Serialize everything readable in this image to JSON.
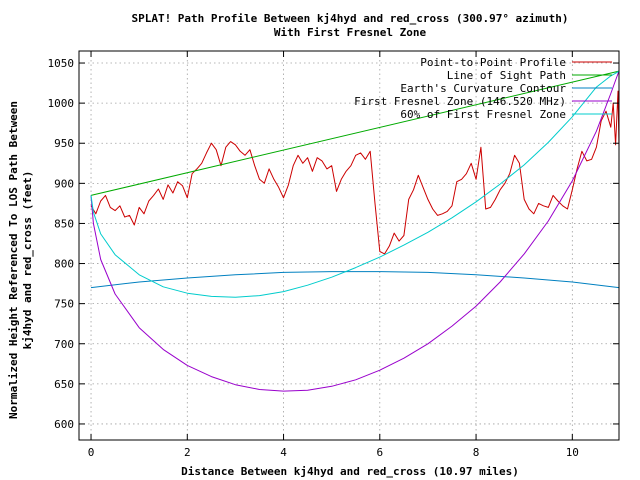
{
  "chart_data": {
    "type": "line",
    "title": "SPLAT! Path Profile Between kj4hyd and red_cross (300.97° azimuth)",
    "subtitle": "With First Fresnel Zone",
    "xlabel": "Distance Between kj4hyd and red_cross (10.97 miles)",
    "ylabel_line1": "Normalized Height Referenced To LOS Path Between",
    "ylabel_line2": "kj4hyd and red_cross (feet)",
    "xlim": [
      -0.25,
      10.97
    ],
    "ylim": [
      580,
      1065
    ],
    "xticks": [
      0,
      2,
      4,
      6,
      8,
      10
    ],
    "yticks": [
      600,
      650,
      700,
      750,
      800,
      850,
      900,
      950,
      1000,
      1050
    ],
    "grid": true,
    "legend_position": "top-right",
    "series": [
      {
        "name": "Point-to-Point Profile",
        "color": "#cc0000",
        "x": [
          0,
          0.1,
          0.2,
          0.3,
          0.4,
          0.5,
          0.6,
          0.7,
          0.8,
          0.9,
          1.0,
          1.1,
          1.2,
          1.3,
          1.4,
          1.5,
          1.6,
          1.7,
          1.8,
          1.9,
          2.0,
          2.1,
          2.2,
          2.3,
          2.4,
          2.5,
          2.6,
          2.7,
          2.8,
          2.9,
          3.0,
          3.1,
          3.2,
          3.3,
          3.4,
          3.5,
          3.6,
          3.7,
          3.8,
          3.9,
          4.0,
          4.1,
          4.2,
          4.3,
          4.4,
          4.5,
          4.6,
          4.7,
          4.8,
          4.9,
          5.0,
          5.1,
          5.2,
          5.3,
          5.4,
          5.5,
          5.6,
          5.7,
          5.8,
          5.9,
          6.0,
          6.1,
          6.2,
          6.3,
          6.4,
          6.5,
          6.6,
          6.7,
          6.8,
          6.9,
          7.0,
          7.1,
          7.2,
          7.3,
          7.4,
          7.5,
          7.6,
          7.7,
          7.8,
          7.9,
          8.0,
          8.1,
          8.2,
          8.3,
          8.4,
          8.5,
          8.6,
          8.7,
          8.8,
          8.9,
          9.0,
          9.1,
          9.2,
          9.3,
          9.4,
          9.5,
          9.6,
          9.7,
          9.8,
          9.9,
          10.0,
          10.1,
          10.2,
          10.3,
          10.4,
          10.5,
          10.6,
          10.7,
          10.8,
          10.85,
          10.9,
          10.95,
          10.97
        ],
        "values": [
          872,
          862,
          878,
          885,
          870,
          866,
          872,
          858,
          860,
          848,
          870,
          862,
          878,
          885,
          893,
          880,
          898,
          888,
          902,
          897,
          882,
          912,
          918,
          925,
          938,
          950,
          942,
          922,
          945,
          952,
          948,
          940,
          935,
          942,
          922,
          905,
          900,
          918,
          905,
          895,
          882,
          898,
          922,
          935,
          925,
          932,
          915,
          932,
          928,
          918,
          922,
          890,
          905,
          915,
          922,
          935,
          938,
          930,
          940,
          875,
          815,
          812,
          822,
          838,
          828,
          835,
          880,
          892,
          910,
          895,
          880,
          868,
          860,
          862,
          865,
          872,
          902,
          905,
          912,
          925,
          905,
          945,
          868,
          870,
          880,
          892,
          900,
          912,
          935,
          925,
          880,
          868,
          862,
          875,
          872,
          870,
          885,
          878,
          872,
          868,
          892,
          918,
          940,
          928,
          930,
          945,
          978,
          990,
          970,
          1000,
          948,
          1015,
          945
        ]
      },
      {
        "name": "Line of Sight Path",
        "color": "#00aa00",
        "x": [
          0,
          10.97
        ],
        "values": [
          885,
          1040
        ]
      },
      {
        "name": "Earth's Curvature Contour",
        "color": "#0080c0",
        "x": [
          0,
          1,
          2,
          3,
          4,
          5,
          6,
          7,
          8,
          9,
          10,
          10.97
        ],
        "values": [
          770,
          777,
          782,
          786,
          789,
          790,
          790,
          789,
          786,
          782,
          777,
          770
        ]
      },
      {
        "name": "First Fresnel Zone (146.520 MHz)",
        "color": "#9900cc",
        "x": [
          0,
          0.05,
          0.2,
          0.5,
          1,
          1.5,
          2,
          2.5,
          3,
          3.5,
          4,
          4.5,
          5,
          5.5,
          6,
          6.5,
          7,
          7.5,
          8,
          8.5,
          9,
          9.5,
          10,
          10.5,
          10.8,
          10.92,
          10.97
        ],
        "values": [
          885,
          850,
          805,
          762,
          720,
          693,
          673,
          659,
          649,
          643,
          641,
          642,
          647,
          655,
          667,
          682,
          700,
          722,
          747,
          777,
          812,
          853,
          903,
          965,
          1012,
          1032,
          1040
        ]
      },
      {
        "name": "60% of First Fresnel Zone",
        "color": "#00cccc",
        "x": [
          0,
          0.05,
          0.2,
          0.5,
          1,
          1.5,
          2,
          2.5,
          3,
          3.5,
          4,
          4.5,
          5,
          5.5,
          6,
          6.5,
          7,
          7.5,
          8,
          8.5,
          9,
          9.5,
          10,
          10.5,
          10.8,
          10.92,
          10.97
        ],
        "values": [
          885,
          864,
          837,
          811,
          786,
          771,
          763,
          759,
          758,
          760,
          765,
          773,
          783,
          795,
          808,
          823,
          839,
          857,
          877,
          899,
          923,
          951,
          983,
          1020,
          1034,
          1038,
          1040
        ]
      }
    ]
  }
}
